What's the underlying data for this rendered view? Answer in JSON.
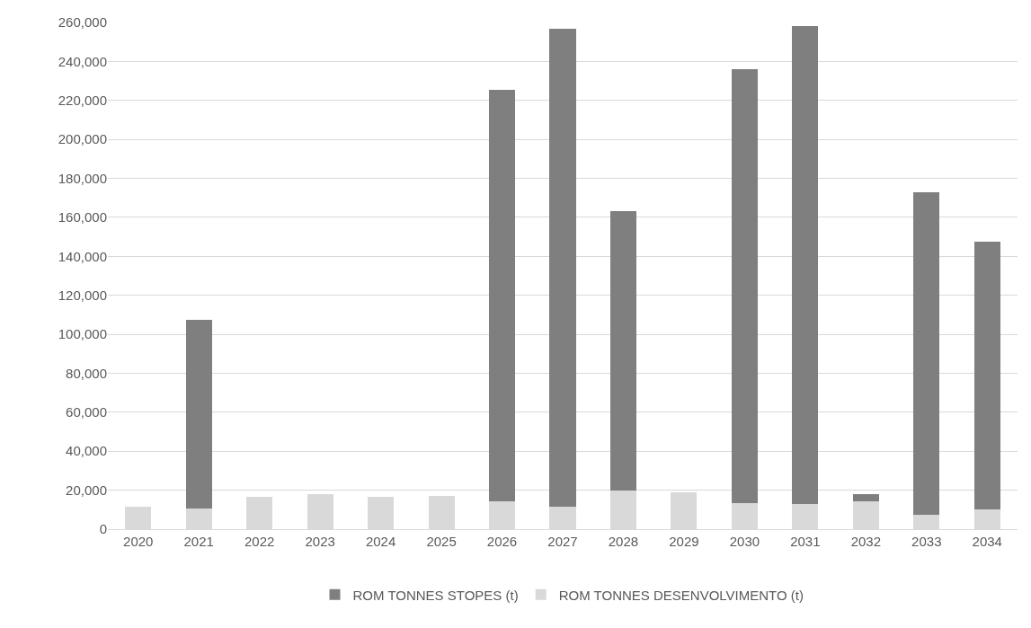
{
  "chart_data": {
    "type": "bar",
    "stacked": true,
    "categories": [
      "2020",
      "2021",
      "2022",
      "2023",
      "2024",
      "2025",
      "2026",
      "2027",
      "2028",
      "2029",
      "2030",
      "2031",
      "2032",
      "2033",
      "2034"
    ],
    "series": [
      {
        "name": "ROM TONNES DESENVOLVIMENTO (t)",
        "color": "#d9d9d9",
        "values": [
          11300,
          10600,
          16500,
          18000,
          16800,
          17100,
          14500,
          11300,
          20000,
          19000,
          13200,
          12900,
          14500,
          7400,
          10000
        ]
      },
      {
        "name": "ROM TONNES STOPES (t)",
        "color": "#7f7f7f",
        "values": [
          null,
          97000,
          null,
          null,
          null,
          null,
          211000,
          245700,
          143000,
          null,
          222800,
          245100,
          3500,
          165600,
          137500
        ]
      }
    ],
    "ylim": [
      0,
      260000
    ],
    "yticks": [
      {
        "value": 0,
        "label": "0"
      },
      {
        "value": 20000,
        "label": "20,000"
      },
      {
        "value": 40000,
        "label": "40,000"
      },
      {
        "value": 60000,
        "label": "60,000"
      },
      {
        "value": 80000,
        "label": "80,000"
      },
      {
        "value": 100000,
        "label": "100,000"
      },
      {
        "value": 120000,
        "label": "120,000"
      },
      {
        "value": 140000,
        "label": "140,000"
      },
      {
        "value": 160000,
        "label": "160,000"
      },
      {
        "value": 180000,
        "label": "180,000"
      },
      {
        "value": 200000,
        "label": "200,000"
      },
      {
        "value": 220000,
        "label": "220,000"
      },
      {
        "value": 240000,
        "label": "240,000"
      },
      {
        "value": 260000,
        "label": "260,000"
      }
    ],
    "grid": "y",
    "legend": "bottom"
  }
}
